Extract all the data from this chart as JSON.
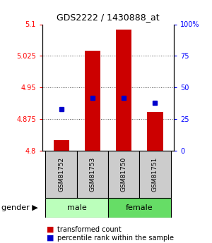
{
  "title": "GDS2222 / 1430888_at",
  "samples": [
    "GSM81752",
    "GSM81753",
    "GSM81750",
    "GSM81751"
  ],
  "gender": [
    "male",
    "male",
    "female",
    "female"
  ],
  "red_values": [
    4.825,
    5.038,
    5.088,
    4.892
  ],
  "blue_percentiles": [
    33,
    42,
    42,
    38
  ],
  "ylim_left": [
    4.8,
    5.1
  ],
  "ylim_right": [
    0,
    100
  ],
  "yticks_left": [
    4.8,
    4.875,
    4.95,
    5.025,
    5.1
  ],
  "ytick_labels_left": [
    "4.8",
    "4.875",
    "4.95",
    "5.025",
    "5.1"
  ],
  "yticks_right": [
    0,
    25,
    50,
    75,
    100
  ],
  "ytick_labels_right": [
    "0",
    "25",
    "50",
    "75",
    "100%"
  ],
  "bar_color": "#cc0000",
  "dot_color": "#0000cc",
  "male_color": "#bbffbb",
  "female_color": "#66dd66",
  "sample_box_color": "#cccccc",
  "grid_color": "#555555",
  "baseline": 4.8,
  "bar_width": 0.5,
  "legend_labels": [
    "transformed count",
    "percentile rank within the sample"
  ]
}
